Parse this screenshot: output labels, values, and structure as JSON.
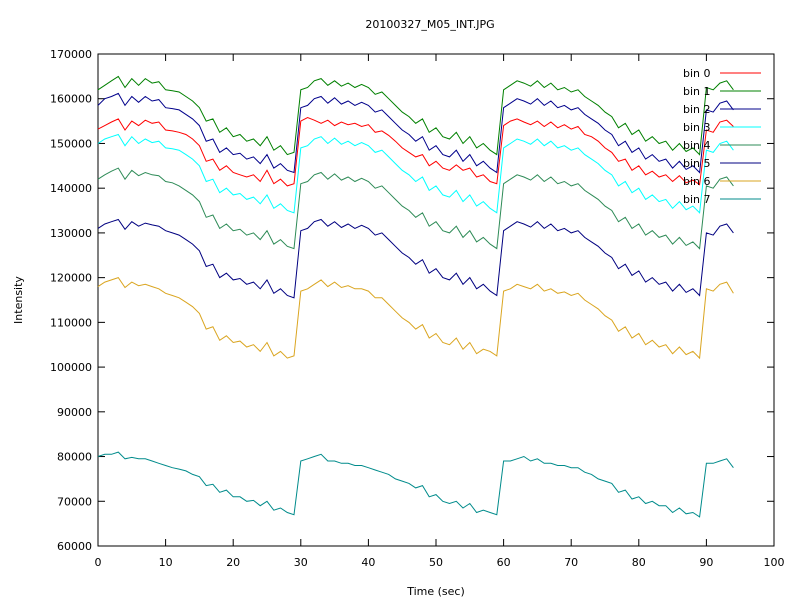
{
  "chart_data": {
    "type": "line",
    "title": "20100327_M05_INT.JPG",
    "xlabel": "Time (sec)",
    "ylabel": "Intensity",
    "xlim": [
      0,
      100
    ],
    "ylim": [
      60000,
      170000
    ],
    "xticks": [
      0,
      10,
      20,
      30,
      40,
      50,
      60,
      70,
      80,
      90,
      100
    ],
    "yticks": [
      60000,
      70000,
      80000,
      90000,
      100000,
      110000,
      120000,
      130000,
      140000,
      150000,
      160000,
      170000
    ],
    "x_tick_labels": [
      "0",
      "10",
      "20",
      "30",
      "40",
      "50",
      "60",
      "70",
      "80",
      "90",
      "100"
    ],
    "y_tick_labels": [
      "60000",
      "70000",
      "80000",
      "90000",
      "100000",
      "110000",
      "120000",
      "130000",
      "140000",
      "150000",
      "160000",
      "170000"
    ],
    "grid": false,
    "legend_position": "top-right",
    "x": [
      0,
      1,
      2,
      3,
      4,
      5,
      6,
      7,
      8,
      9,
      10,
      11,
      12,
      13,
      14,
      15,
      16,
      17,
      18,
      19,
      20,
      21,
      22,
      23,
      24,
      25,
      26,
      27,
      28,
      29,
      30,
      31,
      32,
      33,
      34,
      35,
      36,
      37,
      38,
      39,
      40,
      41,
      42,
      43,
      44,
      45,
      46,
      47,
      48,
      49,
      50,
      51,
      52,
      53,
      54,
      55,
      56,
      57,
      58,
      59,
      60,
      61,
      62,
      63,
      64,
      65,
      66,
      67,
      68,
      69,
      70,
      71,
      72,
      73,
      74,
      75,
      76,
      77,
      78,
      79,
      80,
      81,
      82,
      83,
      84,
      85,
      86,
      87,
      88,
      89,
      90,
      91,
      92,
      93,
      94
    ],
    "series": [
      {
        "name": "bin 0",
        "color": "#ff0000",
        "values": [
          153200,
          154000,
          154800,
          155500,
          153000,
          155000,
          154000,
          155200,
          154500,
          154800,
          153000,
          152800,
          152500,
          152000,
          151000,
          149500,
          146000,
          146500,
          144000,
          145000,
          143500,
          143000,
          142500,
          143000,
          141500,
          144000,
          141000,
          142000,
          140500,
          141000,
          155000,
          155800,
          155200,
          154500,
          155200,
          154000,
          154800,
          154200,
          154500,
          153800,
          154200,
          152500,
          152800,
          151800,
          150500,
          149000,
          148000,
          147000,
          147500,
          145000,
          146000,
          144500,
          144000,
          145200,
          144000,
          144500,
          142500,
          143000,
          141500,
          141000,
          154000,
          155000,
          155500,
          154800,
          154200,
          155000,
          153800,
          154800,
          153500,
          154200,
          153200,
          153800,
          152000,
          151500,
          150500,
          149000,
          148000,
          146000,
          146500,
          144000,
          145000,
          143000,
          143800,
          142500,
          143000,
          141500,
          142800,
          141200,
          141800,
          140800,
          153000,
          152500,
          154800,
          155200,
          153800
        ]
      },
      {
        "name": "bin 1",
        "color": "#008000",
        "values": [
          162000,
          163000,
          164000,
          165000,
          162500,
          164500,
          163000,
          164500,
          163500,
          163800,
          162000,
          161800,
          161500,
          160500,
          159500,
          158000,
          155000,
          155500,
          152500,
          153500,
          151500,
          152000,
          150500,
          151000,
          149500,
          151500,
          148500,
          149500,
          147500,
          148000,
          162000,
          162500,
          164000,
          164500,
          163000,
          164000,
          162800,
          163500,
          162500,
          163200,
          162500,
          161000,
          161500,
          160000,
          158500,
          157000,
          156000,
          154500,
          155500,
          152500,
          153500,
          151500,
          151000,
          152500,
          150000,
          151500,
          149000,
          150000,
          148500,
          147500,
          162000,
          163000,
          164000,
          163500,
          162800,
          164000,
          162500,
          163500,
          162000,
          162500,
          161500,
          162000,
          160500,
          159500,
          158500,
          157000,
          156000,
          153500,
          154500,
          152000,
          153000,
          150500,
          151500,
          150000,
          150500,
          148500,
          150000,
          148200,
          149000,
          147500,
          162500,
          162000,
          163500,
          164000,
          162000
        ]
      },
      {
        "name": "bin 2",
        "color": "#00008b",
        "values": [
          158500,
          160000,
          160500,
          161200,
          158500,
          160500,
          159200,
          160500,
          159500,
          159800,
          158000,
          157800,
          157500,
          156500,
          155500,
          154000,
          150500,
          151000,
          148000,
          149000,
          147500,
          147800,
          146500,
          147000,
          145500,
          147500,
          144500,
          145500,
          144000,
          143500,
          158000,
          158500,
          160000,
          160500,
          159000,
          160200,
          158800,
          159500,
          158500,
          159200,
          158500,
          157000,
          157500,
          156000,
          154500,
          153000,
          152000,
          150500,
          151500,
          148500,
          149500,
          147500,
          147000,
          148500,
          146000,
          147500,
          145000,
          146000,
          144500,
          143500,
          158000,
          159000,
          160000,
          159500,
          158800,
          160000,
          158500,
          159500,
          158000,
          158500,
          157500,
          158000,
          156500,
          155500,
          154500,
          153000,
          152000,
          149500,
          150500,
          148000,
          149000,
          146500,
          147500,
          146000,
          146500,
          144500,
          146000,
          144200,
          145000,
          143500,
          157500,
          157000,
          159000,
          159500,
          157500
        ]
      },
      {
        "name": "bin 3",
        "color": "#00ffff",
        "values": [
          150000,
          151000,
          151500,
          152000,
          149500,
          151500,
          150000,
          151000,
          150200,
          150500,
          149000,
          148800,
          148500,
          147500,
          146500,
          145000,
          141500,
          142000,
          139000,
          140000,
          138500,
          138800,
          137500,
          138000,
          136500,
          138500,
          135500,
          136500,
          135000,
          134500,
          149000,
          149500,
          151000,
          151500,
          150000,
          151200,
          149800,
          150500,
          149500,
          150200,
          149500,
          148000,
          148500,
          147000,
          145500,
          144000,
          143000,
          141500,
          142500,
          139500,
          140500,
          138500,
          138000,
          139500,
          137000,
          138500,
          136000,
          137000,
          135500,
          134500,
          149000,
          150000,
          151000,
          150500,
          149800,
          151000,
          149500,
          150500,
          149000,
          149500,
          148500,
          149000,
          147500,
          146500,
          145500,
          144000,
          143000,
          140500,
          141500,
          139000,
          140000,
          137500,
          138500,
          137000,
          137500,
          135500,
          137000,
          135200,
          136000,
          134500,
          148500,
          148000,
          150000,
          150500,
          148500
        ]
      },
      {
        "name": "bin 4",
        "color": "#2e8b57",
        "values": [
          142000,
          143000,
          143800,
          144500,
          142000,
          144000,
          142800,
          143500,
          143000,
          142800,
          141500,
          141200,
          140500,
          139500,
          138500,
          137000,
          133500,
          134000,
          131000,
          132000,
          130500,
          130800,
          129500,
          130000,
          128500,
          130500,
          127500,
          128500,
          127000,
          126500,
          141000,
          141500,
          143000,
          143500,
          142000,
          143200,
          141800,
          142500,
          141500,
          142200,
          141500,
          140000,
          140500,
          139000,
          137500,
          136000,
          135000,
          133500,
          134500,
          131500,
          132500,
          130500,
          130000,
          131500,
          129000,
          130500,
          128000,
          129000,
          127500,
          126500,
          141000,
          142000,
          143000,
          142500,
          141800,
          143000,
          141500,
          142500,
          141000,
          141500,
          140500,
          141000,
          139500,
          138500,
          137500,
          136000,
          135000,
          132500,
          133500,
          131000,
          132000,
          129500,
          130500,
          129000,
          129500,
          127500,
          129000,
          127200,
          128000,
          126500,
          140500,
          140000,
          142000,
          142500,
          140500
        ]
      },
      {
        "name": "bin 5",
        "color": "#000080",
        "values": [
          131000,
          132000,
          132500,
          133000,
          130800,
          132500,
          131500,
          132200,
          131800,
          131500,
          130500,
          130000,
          129500,
          128500,
          127500,
          126000,
          122500,
          123000,
          120000,
          121000,
          119500,
          119800,
          118500,
          119000,
          117500,
          119500,
          116500,
          117500,
          116000,
          115500,
          130500,
          131000,
          132500,
          133000,
          131500,
          132500,
          131200,
          132000,
          131000,
          131700,
          131000,
          129500,
          130000,
          128500,
          127000,
          125500,
          124500,
          123000,
          124000,
          121000,
          122000,
          120000,
          119500,
          121000,
          118500,
          120000,
          117500,
          118500,
          117000,
          116000,
          130500,
          131500,
          132500,
          132000,
          131300,
          132500,
          131000,
          132000,
          130500,
          131000,
          130000,
          130500,
          129000,
          128000,
          127000,
          125500,
          124500,
          122000,
          123000,
          120500,
          121500,
          119000,
          120000,
          118500,
          119000,
          117000,
          118500,
          116700,
          117500,
          116000,
          130000,
          129500,
          131500,
          132000,
          130000
        ]
      },
      {
        "name": "bin 6",
        "color": "#daa520",
        "values": [
          118000,
          119000,
          119500,
          120000,
          117800,
          119000,
          118200,
          118500,
          118000,
          117500,
          116500,
          116000,
          115500,
          114500,
          113500,
          112000,
          108500,
          109000,
          106000,
          107000,
          105500,
          105800,
          104500,
          105000,
          103500,
          105500,
          102500,
          103500,
          102000,
          102500,
          117000,
          117500,
          118500,
          119500,
          118000,
          119000,
          117800,
          118200,
          117500,
          117500,
          117000,
          115500,
          115500,
          114000,
          112500,
          111000,
          110000,
          108500,
          109500,
          106500,
          107500,
          105500,
          105000,
          106500,
          104000,
          105500,
          103000,
          104000,
          103500,
          102500,
          117000,
          117500,
          118500,
          118000,
          117500,
          118500,
          117000,
          117500,
          116500,
          116800,
          116000,
          116500,
          115000,
          114000,
          113000,
          111500,
          110500,
          108000,
          109000,
          106500,
          107500,
          105000,
          106000,
          104500,
          105000,
          103000,
          104500,
          102800,
          103500,
          102000,
          117500,
          117000,
          118500,
          119000,
          116500
        ]
      },
      {
        "name": "bin 7",
        "color": "#008b8b",
        "values": [
          80000,
          80500,
          80500,
          81000,
          79500,
          79800,
          79500,
          79500,
          79000,
          78500,
          78000,
          77500,
          77200,
          76800,
          76000,
          75500,
          73500,
          73800,
          72000,
          72500,
          71000,
          71000,
          70000,
          70200,
          69000,
          70000,
          68000,
          68500,
          67500,
          67000,
          79000,
          79500,
          80000,
          80500,
          79000,
          79000,
          78500,
          78500,
          78000,
          78000,
          77500,
          77000,
          76500,
          76000,
          75000,
          74500,
          74000,
          73000,
          73500,
          71000,
          71500,
          70000,
          69500,
          70000,
          68500,
          69500,
          67500,
          68000,
          67500,
          67000,
          79000,
          79000,
          79500,
          80000,
          79000,
          79500,
          78500,
          78500,
          78000,
          78000,
          77500,
          77500,
          76500,
          76000,
          75000,
          74500,
          74000,
          72000,
          72500,
          70500,
          71000,
          69500,
          70000,
          69000,
          69000,
          67500,
          68500,
          67200,
          67500,
          66500,
          78500,
          78500,
          79000,
          79500,
          77500
        ]
      }
    ]
  }
}
